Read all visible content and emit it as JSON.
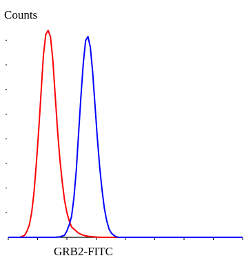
{
  "chart_data": {
    "type": "line",
    "title": "",
    "xlabel": "GRB2-FITC",
    "ylabel": "Counts",
    "xlim": [
      0,
      100
    ],
    "ylim": [
      0,
      100
    ],
    "x_ticks_count": 9,
    "y_ticks_count": 9,
    "tick_labels_shown": false,
    "grid": false,
    "legend": "none",
    "series": [
      {
        "color": "#ff0000",
        "points": [
          [
            0,
            0
          ],
          [
            5,
            0
          ],
          [
            7,
            1
          ],
          [
            8,
            3
          ],
          [
            9,
            6
          ],
          [
            10,
            12
          ],
          [
            11,
            22
          ],
          [
            12,
            36
          ],
          [
            13,
            52
          ],
          [
            14,
            70
          ],
          [
            15,
            88
          ],
          [
            16,
            98
          ],
          [
            17,
            100
          ],
          [
            18,
            97
          ],
          [
            19,
            86
          ],
          [
            20,
            69
          ],
          [
            21,
            52
          ],
          [
            22,
            38
          ],
          [
            23,
            27
          ],
          [
            24,
            18
          ],
          [
            25,
            12
          ],
          [
            26,
            8
          ],
          [
            27,
            5
          ],
          [
            28,
            4
          ],
          [
            29,
            3
          ],
          [
            30,
            2
          ],
          [
            31,
            1.5
          ],
          [
            32,
            1
          ],
          [
            34,
            0.5
          ],
          [
            36,
            0.3
          ],
          [
            38,
            0.1
          ],
          [
            40,
            0
          ],
          [
            100,
            0
          ]
        ]
      },
      {
        "color": "#0000ff",
        "points": [
          [
            0,
            0
          ],
          [
            20,
            0
          ],
          [
            22,
            0.2
          ],
          [
            24,
            1
          ],
          [
            25,
            3
          ],
          [
            26,
            6
          ],
          [
            27,
            10
          ],
          [
            28,
            19
          ],
          [
            29,
            32
          ],
          [
            30,
            50
          ],
          [
            31,
            68
          ],
          [
            32,
            84
          ],
          [
            33,
            95
          ],
          [
            34,
            97
          ],
          [
            35,
            92
          ],
          [
            36,
            80
          ],
          [
            37,
            64
          ],
          [
            38,
            48
          ],
          [
            39,
            34
          ],
          [
            40,
            23
          ],
          [
            41,
            14
          ],
          [
            42,
            8
          ],
          [
            43,
            4
          ],
          [
            44,
            2
          ],
          [
            45,
            1
          ],
          [
            46,
            0.3
          ],
          [
            47,
            0
          ],
          [
            100,
            0
          ]
        ]
      }
    ]
  }
}
